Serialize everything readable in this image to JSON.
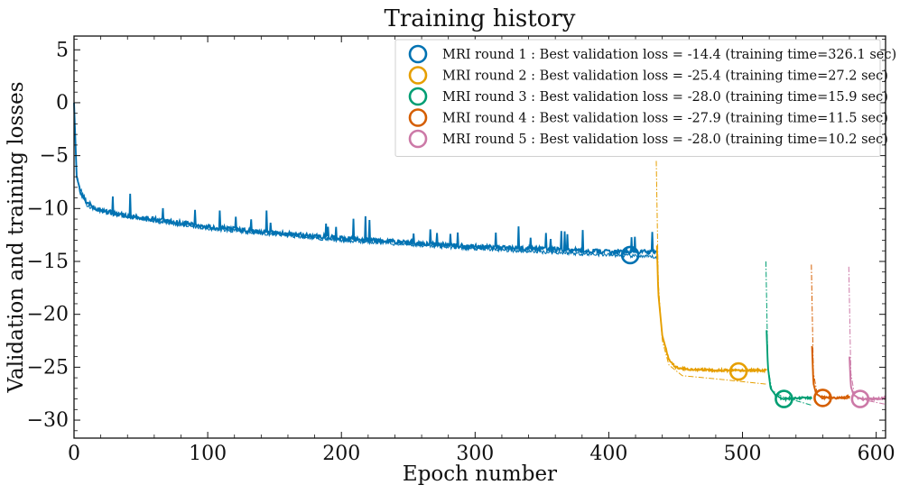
{
  "chart_data": {
    "type": "line",
    "title": "Training history",
    "xlabel": "Epoch number",
    "ylabel": "Validation and training losses",
    "xlim": [
      0,
      607
    ],
    "ylim": [
      -31.7,
      6.3
    ],
    "xticks": [
      0,
      100,
      200,
      300,
      400,
      500,
      600
    ],
    "yticks": [
      5,
      0,
      -5,
      -10,
      -15,
      -20,
      -25,
      -30
    ],
    "grid": false,
    "legend_position": "top-right",
    "series": [
      {
        "name": "MRI round 1 : Best validation loss = -14.4 (training time=326.1 sec)",
        "color": "#0072B2",
        "x_start": 0,
        "x_end": 436,
        "validation_keypoints": [
          [
            0,
            0
          ],
          [
            2,
            -7
          ],
          [
            5,
            -8.5
          ],
          [
            10,
            -9.5
          ],
          [
            20,
            -10.2
          ],
          [
            40,
            -10.7
          ],
          [
            60,
            -11
          ],
          [
            100,
            -11.7
          ],
          [
            150,
            -12.3
          ],
          [
            200,
            -12.8
          ],
          [
            250,
            -13.2
          ],
          [
            300,
            -13.6
          ],
          [
            350,
            -13.8
          ],
          [
            400,
            -14.1
          ],
          [
            436,
            -14.1
          ]
        ],
        "training_keypoints": [
          [
            0,
            0
          ],
          [
            2,
            -7.2
          ],
          [
            10,
            -9.8
          ],
          [
            50,
            -11
          ],
          [
            100,
            -11.9
          ],
          [
            200,
            -13
          ],
          [
            300,
            -13.8
          ],
          [
            436,
            -14.6
          ]
        ],
        "best": {
          "epoch": 416,
          "loss": -14.4
        }
      },
      {
        "name": "MRI round 2 : Best validation loss = -25.4 (training time=27.2 sec)",
        "color": "#E69F00",
        "x_start": 436,
        "x_end": 518,
        "validation_keypoints": [
          [
            436,
            -13.5
          ],
          [
            437,
            -18
          ],
          [
            440,
            -22
          ],
          [
            445,
            -24.3
          ],
          [
            450,
            -25
          ],
          [
            460,
            -25.2
          ],
          [
            480,
            -25.3
          ],
          [
            500,
            -25.3
          ],
          [
            518,
            -25.3
          ]
        ],
        "training_keypoints": [
          [
            435.5,
            -5.5
          ],
          [
            437,
            -17
          ],
          [
            440,
            -22.5
          ],
          [
            445,
            -24.8
          ],
          [
            455,
            -25.8
          ],
          [
            480,
            -26.1
          ],
          [
            518,
            -26.6
          ]
        ],
        "best": {
          "epoch": 497,
          "loss": -25.4
        }
      },
      {
        "name": "MRI round 3 : Best validation loss = -28.0 (training time=15.9 sec)",
        "color": "#009E73",
        "x_start": 518,
        "x_end": 552,
        "validation_keypoints": [
          [
            518,
            -21.5
          ],
          [
            519,
            -25
          ],
          [
            521,
            -27
          ],
          [
            525,
            -27.7
          ],
          [
            530,
            -28
          ],
          [
            540,
            -27.9
          ],
          [
            552,
            -27.9
          ]
        ],
        "training_keypoints": [
          [
            517.5,
            -15
          ],
          [
            519,
            -25
          ],
          [
            522,
            -27.2
          ],
          [
            530,
            -27.8
          ],
          [
            552,
            -28.6
          ]
        ],
        "best": {
          "epoch": 531,
          "loss": -28.0
        }
      },
      {
        "name": "MRI round 4 : Best validation loss = -27.9 (training time=11.5 sec)",
        "color": "#D55E00",
        "x_start": 552,
        "x_end": 580,
        "validation_keypoints": [
          [
            552,
            -23
          ],
          [
            553,
            -26.5
          ],
          [
            555,
            -27.5
          ],
          [
            560,
            -27.9
          ],
          [
            570,
            -27.9
          ],
          [
            580,
            -27.8
          ]
        ],
        "training_keypoints": [
          [
            551.5,
            -15.3
          ],
          [
            553,
            -25.5
          ],
          [
            556,
            -27.6
          ],
          [
            565,
            -27.9
          ],
          [
            580,
            -28
          ]
        ],
        "best": {
          "epoch": 560,
          "loss": -27.9
        }
      },
      {
        "name": "MRI round 5 : Best validation loss = -28.0 (training time=10.2 sec)",
        "color": "#CC79A7",
        "x_start": 580,
        "x_end": 607,
        "validation_keypoints": [
          [
            580,
            -24
          ],
          [
            581,
            -26.8
          ],
          [
            583,
            -27.6
          ],
          [
            588,
            -28
          ],
          [
            595,
            -28
          ],
          [
            607,
            -27.9
          ]
        ],
        "training_keypoints": [
          [
            579.5,
            -15.5
          ],
          [
            581,
            -25.5
          ],
          [
            584,
            -27.8
          ],
          [
            595,
            -28.2
          ],
          [
            607,
            -28.5
          ]
        ],
        "best": {
          "epoch": 588,
          "loss": -28.0
        }
      }
    ]
  }
}
